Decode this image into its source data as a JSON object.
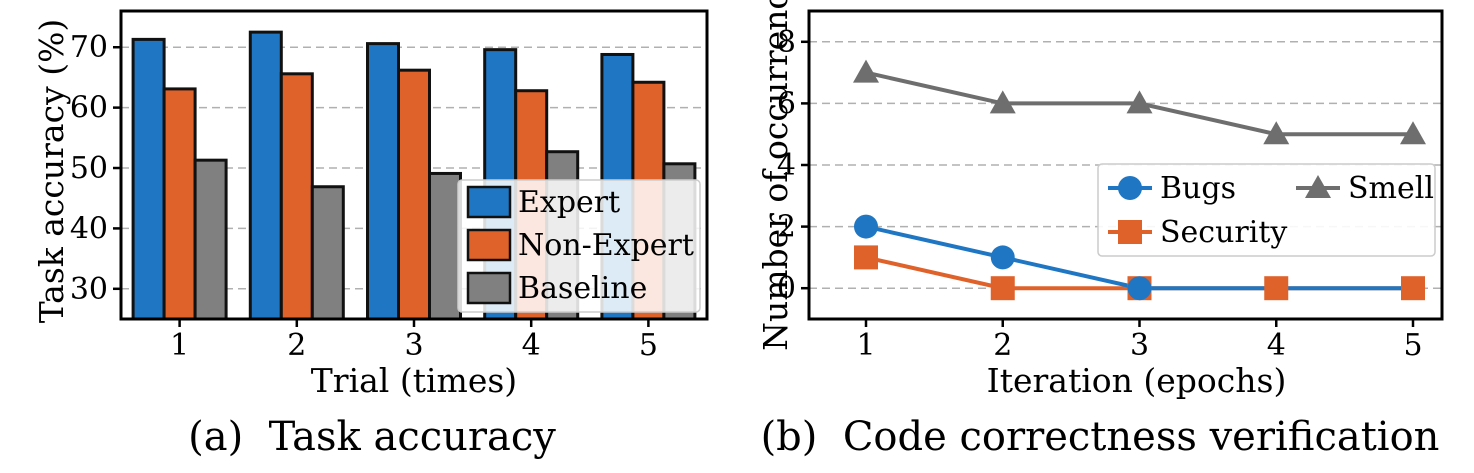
{
  "chart_data": [
    {
      "type": "bar",
      "caption": "(a)  Task accuracy",
      "xlabel": "Trial (times)",
      "ylabel": "Task accuracy (%)",
      "categories": [
        "1",
        "2",
        "3",
        "4",
        "5"
      ],
      "yticks": [
        "30",
        "40",
        "50",
        "60",
        "70"
      ],
      "ylim": [
        25,
        76
      ],
      "grid": "y-dashed",
      "legend_position": "lower-right",
      "series": [
        {
          "name": "Expert",
          "color": "#1f77c4",
          "values": [
            71.3,
            72.5,
            70.6,
            69.6,
            68.8
          ]
        },
        {
          "name": "Non-Expert",
          "color": "#e0622b",
          "values": [
            63.1,
            65.6,
            66.2,
            62.8,
            64.2
          ]
        },
        {
          "name": "Baseline",
          "color": "#808080",
          "values": [
            51.3,
            46.9,
            49.1,
            52.7,
            50.7
          ]
        }
      ]
    },
    {
      "type": "line",
      "caption": "(b)  Code correctness verification",
      "xlabel": "Iteration (epochs)",
      "ylabel": "Number of occurrenc",
      "x": [
        "1",
        "2",
        "3",
        "4",
        "5"
      ],
      "yticks": [
        "0",
        "2",
        "4",
        "6",
        "8"
      ],
      "ylim": [
        -1,
        9
      ],
      "grid": "y-dashed",
      "legend_position": "center-right",
      "series": [
        {
          "name": "Bugs",
          "color": "#1f77c4",
          "marker": "circle",
          "values": [
            2,
            1,
            0,
            0,
            0
          ]
        },
        {
          "name": "Security",
          "color": "#e0622b",
          "marker": "square",
          "values": [
            1,
            0,
            0,
            0,
            0
          ]
        },
        {
          "name": "Smell",
          "color": "#6e6e6e",
          "marker": "triangle",
          "values": [
            7,
            6,
            6,
            5,
            5
          ]
        }
      ]
    }
  ]
}
